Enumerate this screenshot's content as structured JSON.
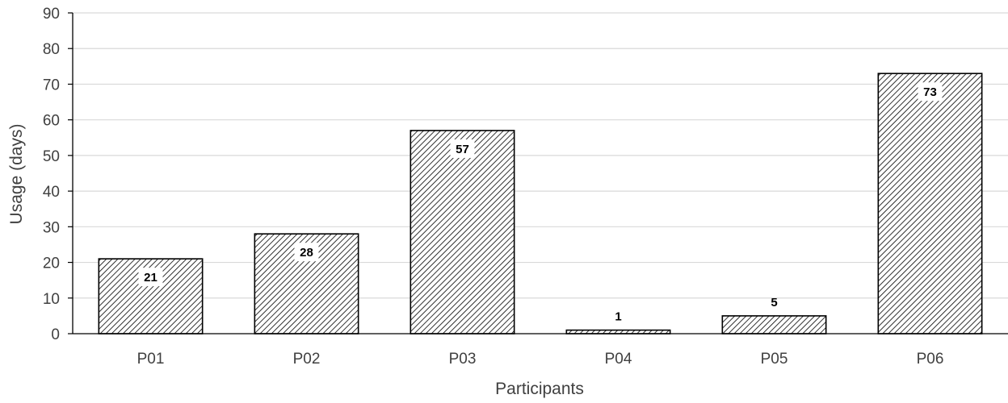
{
  "chart_data": {
    "type": "bar",
    "title": "",
    "xlabel": "Participants",
    "ylabel": "Usage (days)",
    "categories": [
      "P01",
      "P02",
      "P03",
      "P04",
      "P05",
      "P06"
    ],
    "values": [
      21,
      28,
      57,
      1,
      5,
      73
    ],
    "data_labels": [
      "21",
      "28",
      "57",
      "1",
      "5",
      "73"
    ],
    "ylim": [
      0,
      90
    ],
    "yticks": [
      0,
      10,
      20,
      30,
      40,
      50,
      60,
      70,
      80,
      90
    ],
    "grid": true,
    "legend": "none",
    "bar_fill": "diagonal-hatch",
    "bar_color": "#000000",
    "grid_color": "#d9d9d9"
  }
}
